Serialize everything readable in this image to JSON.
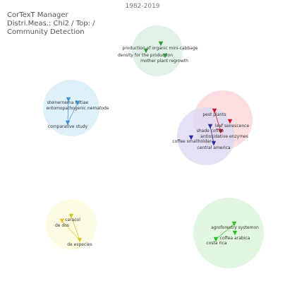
{
  "header": {
    "app": "CorTexT Manager",
    "params": "Distri.Meas.: Chi2 / Top:  /",
    "mode": "Community Detection",
    "period": "1982-2019"
  },
  "clusters": [
    {
      "id": "cabbage",
      "color": "#d8efe0",
      "arrow_color": "#2e9a3a",
      "nodes": [
        {
          "id": "prod-organic",
          "label": "production of organic mini-cabbage"
        },
        {
          "id": "density",
          "label": "density for the production"
        },
        {
          "id": "mother-plant",
          "label": "mother plant regrowth"
        }
      ],
      "edges": []
    },
    {
      "id": "nematode",
      "color": "#d6ecf9",
      "arrow_color": "#3f8fd2",
      "nodes": [
        {
          "id": "steinernema",
          "label": "steinernema feltiae"
        },
        {
          "id": "entomopath",
          "label": "entomopathogenic nematode"
        },
        {
          "id": "comparative",
          "label": "comparative study"
        }
      ],
      "edges": [
        {
          "from": "steinernema",
          "to": "comparative"
        },
        {
          "from": "entomopath",
          "to": "comparative"
        }
      ]
    },
    {
      "id": "pests",
      "color": "#fbd6da",
      "arrow_color": "#d01020",
      "nodes": [
        {
          "id": "pest-plants",
          "label": "pest plants"
        },
        {
          "id": "leaf-senescence",
          "label": "leaf senescence"
        },
        {
          "id": "antioxidative",
          "label": "antioxidative enzymes"
        }
      ],
      "edges": [
        {
          "from": "pest-plants",
          "to": "antioxidative"
        }
      ]
    },
    {
      "id": "coffee-shade",
      "color": "#ddd8f3",
      "arrow_color": "#2a2fa0",
      "nodes": [
        {
          "id": "shade-coffee",
          "label": "shade coffee"
        },
        {
          "id": "smallholder",
          "label": "coffee smallholder"
        },
        {
          "id": "central-america",
          "label": "central america"
        }
      ],
      "edges": [
        {
          "from": "shade-coffee",
          "to": "central-america"
        }
      ]
    },
    {
      "id": "species",
      "color": "#fdfbdc",
      "arrow_color": "#d4c81a",
      "nodes": [
        {
          "id": "caracol",
          "label": "caracol"
        },
        {
          "id": "de-dos",
          "label": "de dos"
        },
        {
          "id": "de-especies",
          "label": "de especies"
        }
      ],
      "edges": [
        {
          "from": "caracol",
          "to": "de-especies"
        },
        {
          "from": "de-dos",
          "to": "de-especies"
        }
      ]
    },
    {
      "id": "agroforestry",
      "color": "#d9f5d8",
      "arrow_color": "#22c020",
      "nodes": [
        {
          "id": "agroforestry-systems",
          "label": "agroforestry systemon"
        },
        {
          "id": "coffea-arabica",
          "label": "coffea arabica"
        },
        {
          "id": "costa-rica",
          "label": "costa rica"
        }
      ],
      "edges": [
        {
          "from": "agroforestry-systems",
          "to": "costa-rica"
        }
      ]
    }
  ]
}
